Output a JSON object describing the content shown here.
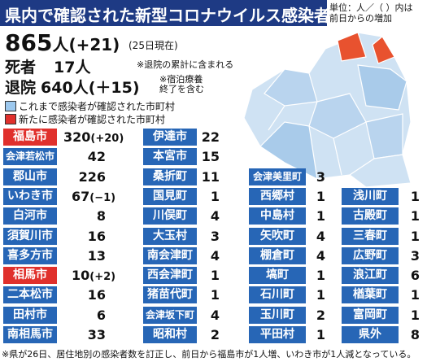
{
  "header": {
    "title": "県内で確認された新型コロナウイルス感染者",
    "unit_note": [
      "単位：人／（ ）内は",
      "前日からの増加"
    ]
  },
  "summary": {
    "total": 865,
    "total_unit": "人",
    "total_change": "(+21)",
    "as_of": "(25日現在)",
    "deaths_label": "死者",
    "deaths": 17,
    "deaths_unit": "人",
    "deaths_note": "※退院の累計に含まれる",
    "discharged_label": "退院",
    "discharged": 640,
    "discharged_unit": "人",
    "discharged_change": "(＋15)",
    "discharged_note": [
      "※宿泊療養",
      "終了を含む"
    ]
  },
  "legend": [
    "これまで感染者が確認された市町村",
    "新たに感染者が確認された市町村"
  ],
  "table": {
    "columns": [
      {
        "start_row": 0,
        "rows": [
          {
            "name": "福島市",
            "count": 320,
            "change": "(+20)",
            "new": true
          },
          {
            "name": "会津若松市",
            "count": 42
          },
          {
            "name": "郡山市",
            "count": 226
          },
          {
            "name": "いわき市",
            "count": 67,
            "change": "(−1)"
          },
          {
            "name": "白河市",
            "count": 8
          },
          {
            "name": "須賀川市",
            "count": 16
          },
          {
            "name": "喜多方市",
            "count": 13
          },
          {
            "name": "相馬市",
            "count": 10,
            "change": "(+2)",
            "new": true
          },
          {
            "name": "二本松市",
            "count": 16
          },
          {
            "name": "田村市",
            "count": 6
          },
          {
            "name": "南相馬市",
            "count": 33
          }
        ]
      },
      {
        "start_row": 0,
        "rows": [
          {
            "name": "伊達市",
            "count": 22
          },
          {
            "name": "本宮市",
            "count": 15
          },
          {
            "name": "桑折町",
            "count": 11
          },
          {
            "name": "国見町",
            "count": 1
          },
          {
            "name": "川俣町",
            "count": 4
          },
          {
            "name": "大玉村",
            "count": 3
          },
          {
            "name": "南会津町",
            "count": 4
          },
          {
            "name": "西会津町",
            "count": 1
          },
          {
            "name": "猪苗代町",
            "count": 1
          },
          {
            "name": "会津坂下町",
            "count": 4
          },
          {
            "name": "昭和村",
            "count": 2
          }
        ]
      },
      {
        "start_row": 2,
        "rows": [
          {
            "name": "会津美里町",
            "count": 3
          },
          {
            "name": "西郷村",
            "count": 1
          },
          {
            "name": "中島村",
            "count": 1
          },
          {
            "name": "矢吹町",
            "count": 4
          },
          {
            "name": "棚倉町",
            "count": 4
          },
          {
            "name": "塙町",
            "count": 1
          },
          {
            "name": "石川町",
            "count": 1
          },
          {
            "name": "玉川町",
            "count": 2
          },
          {
            "name": "平田村",
            "count": 1
          }
        ]
      },
      {
        "start_row": 3,
        "rows": [
          {
            "name": "浅川町",
            "count": 1
          },
          {
            "name": "古殿町",
            "count": 1
          },
          {
            "name": "三春町",
            "count": 1
          },
          {
            "name": "広野町",
            "count": 3
          },
          {
            "name": "浪江町",
            "count": 6
          },
          {
            "name": "楢葉町",
            "count": 1
          },
          {
            "name": "富岡町",
            "count": 1
          },
          {
            "name": "県外",
            "count": 8
          }
        ]
      }
    ]
  },
  "footnote": "※県が26日、居住地別の感染者数を訂正し、前日から福島市が1人増、いわき市が1人減となっている。"
}
